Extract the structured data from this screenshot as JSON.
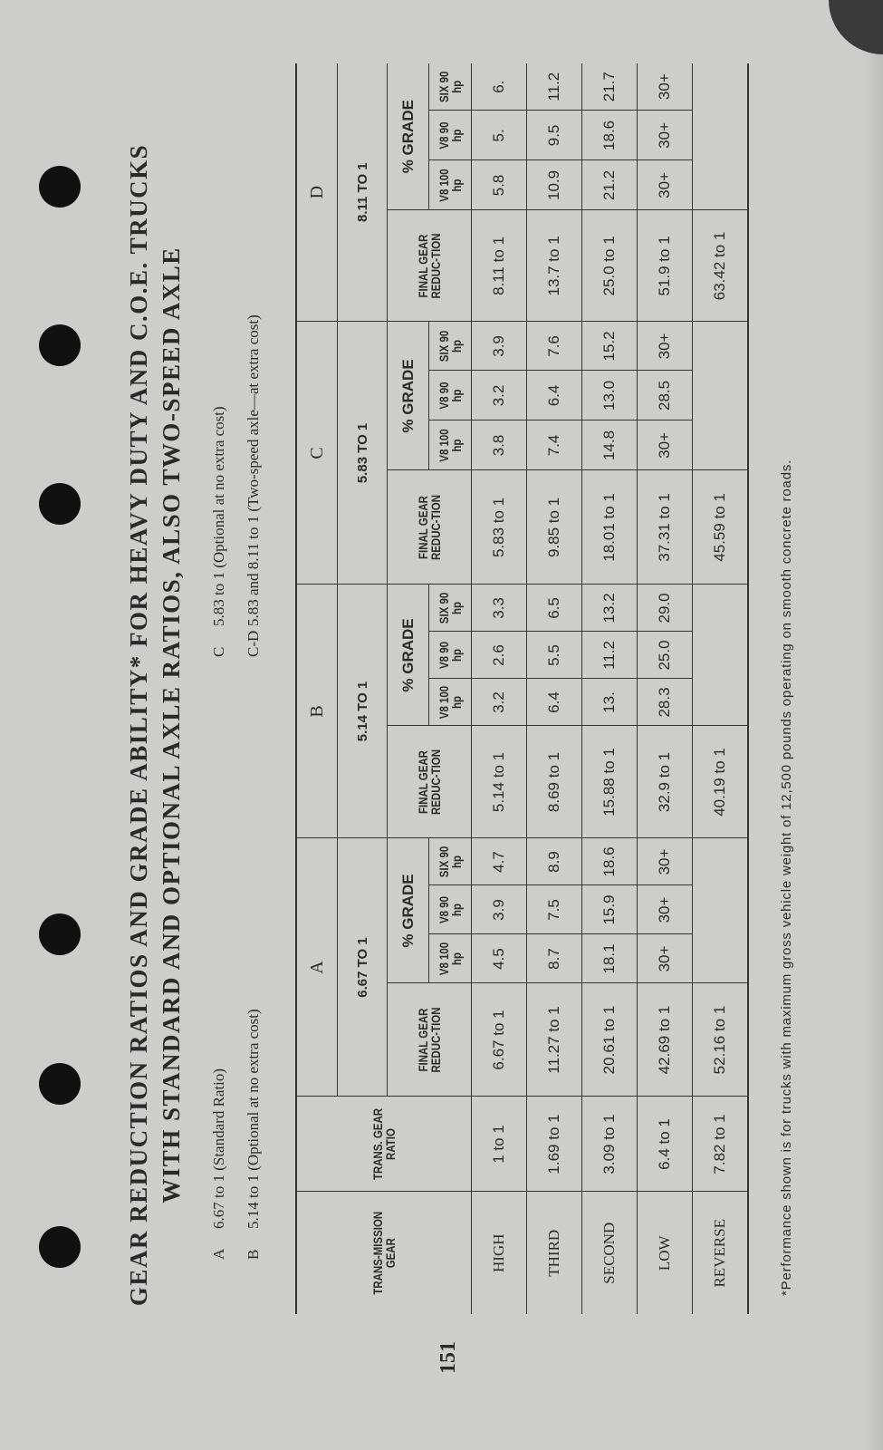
{
  "title_line1": "GEAR REDUCTION RATIOS AND GRADE ABILITY* FOR HEAVY DUTY AND C.O.E. TRUCKS",
  "title_line2": "WITH STANDARD AND OPTIONAL AXLE RATIOS, ALSO TWO-SPEED AXLE",
  "legend": [
    {
      "key": "A",
      "text": "6.67 to 1 (Standard Ratio)"
    },
    {
      "key": "B",
      "text": "5.14 to 1 (Optional at no extra cost)"
    },
    {
      "key": "C",
      "text": "5.83 to 1 (Optional at no extra cost)"
    },
    {
      "key": "C-D",
      "text": "5.83 and 8.11 to 1 (Two-speed axle—at extra cost)"
    }
  ],
  "table": {
    "head_gear": "TRANS-MISSION GEAR",
    "head_ratio": "TRANS. GEAR RATIO",
    "head_final": "FINAL GEAR REDUC-TION",
    "head_grade": "% GRADE",
    "sub": [
      "V8 100 hp",
      "V8 90 hp",
      "SIX 90 hp"
    ],
    "sections": [
      {
        "letter": "A",
        "ratio": "6.67 TO 1"
      },
      {
        "letter": "B",
        "ratio": "5.14 TO 1"
      },
      {
        "letter": "C",
        "ratio": "5.83 TO 1"
      },
      {
        "letter": "D",
        "ratio": "8.11 TO 1"
      }
    ],
    "rows": [
      {
        "gear": "HIGH",
        "ratio": "1 to 1",
        "cells": [
          [
            "6.67 to 1",
            "4.5",
            "3.9",
            "4.7"
          ],
          [
            "5.14 to 1",
            "3.2",
            "2.6",
            "3.3"
          ],
          [
            "5.83 to 1",
            "3.8",
            "3.2",
            "3.9"
          ],
          [
            "8.11 to 1",
            "5.8",
            "5.",
            "6."
          ]
        ]
      },
      {
        "gear": "THIRD",
        "ratio": "1.69 to 1",
        "cells": [
          [
            "11.27 to 1",
            "8.7",
            "7.5",
            "8.9"
          ],
          [
            "8.69 to 1",
            "6.4",
            "5.5",
            "6.5"
          ],
          [
            "9.85 to 1",
            "7.4",
            "6.4",
            "7.6"
          ],
          [
            "13.7 to 1",
            "10.9",
            "9.5",
            "11.2"
          ]
        ]
      },
      {
        "gear": "SECOND",
        "ratio": "3.09 to 1",
        "cells": [
          [
            "20.61 to 1",
            "18.1",
            "15.9",
            "18.6"
          ],
          [
            "15.88 to 1",
            "13.",
            "11.2",
            "13.2"
          ],
          [
            "18.01 to 1",
            "14.8",
            "13.0",
            "15.2"
          ],
          [
            "25.0 to 1",
            "21.2",
            "18.6",
            "21.7"
          ]
        ]
      },
      {
        "gear": "LOW",
        "ratio": "6.4 to 1",
        "cells": [
          [
            "42.69 to 1",
            "30+",
            "30+",
            "30+"
          ],
          [
            "32.9 to 1",
            "28.3",
            "25.0",
            "29.0"
          ],
          [
            "37.31 to 1",
            "30+",
            "28.5",
            "30+"
          ],
          [
            "51.9 to 1",
            "30+",
            "30+",
            "30+"
          ]
        ]
      },
      {
        "gear": "REVERSE",
        "ratio": "7.82 to 1",
        "finals": [
          "52.16 to 1",
          "40.19 to 1",
          "45.59 to 1",
          "63.42 to 1"
        ]
      }
    ]
  },
  "footnote": "*Performance shown is for trucks with maximum gross vehicle weight of 12,500 pounds operating on smooth concrete roads.",
  "page_number": "151"
}
